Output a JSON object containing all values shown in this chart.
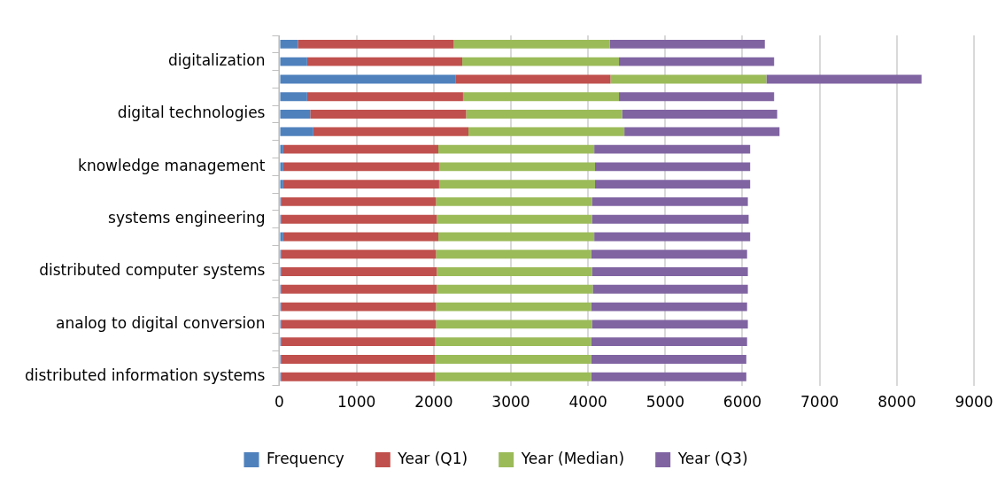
{
  "chart_data": {
    "type": "bar",
    "orientation": "horizontal",
    "stacked": true,
    "categories": [
      null,
      "digitalization",
      null,
      null,
      "digital technologies",
      null,
      null,
      "knowledge management",
      null,
      null,
      "systems engineering",
      null,
      null,
      "distributed computer systems",
      null,
      null,
      "analog to digital conversion",
      null,
      null,
      "distributed information systems"
    ],
    "series": [
      {
        "name": "Frequency",
        "color": "#4f81bd",
        "values": [
          240,
          360,
          2280,
          360,
          400,
          440,
          50,
          50,
          50,
          20,
          20,
          50,
          20,
          20,
          20,
          20,
          20,
          20,
          20,
          20
        ]
      },
      {
        "name": "Year (Q1)",
        "color": "#c0504d",
        "values": [
          2020,
          2010,
          2010,
          2020,
          2020,
          2010,
          2010,
          2020,
          2020,
          2010,
          2020,
          2010,
          2010,
          2020,
          2020,
          2010,
          2010,
          2000,
          2000,
          2000
        ]
      },
      {
        "name": "Year (Median)",
        "color": "#9bbb59",
        "values": [
          2020,
          2030,
          2020,
          2020,
          2020,
          2020,
          2020,
          2020,
          2020,
          2020,
          2010,
          2020,
          2010,
          2010,
          2020,
          2010,
          2020,
          2020,
          2020,
          2020
        ]
      },
      {
        "name": "Year (Q3)",
        "color": "#8064a2",
        "values": [
          2010,
          2010,
          2010,
          2010,
          2010,
          2010,
          2020,
          2010,
          2010,
          2020,
          2030,
          2020,
          2020,
          2020,
          2010,
          2020,
          2020,
          2020,
          2010,
          2010
        ]
      }
    ],
    "xlim": [
      0,
      9000
    ],
    "xticks": [
      0,
      1000,
      2000,
      3000,
      4000,
      5000,
      6000,
      7000,
      8000,
      9000
    ],
    "grid": "x",
    "legend": "bottom"
  }
}
